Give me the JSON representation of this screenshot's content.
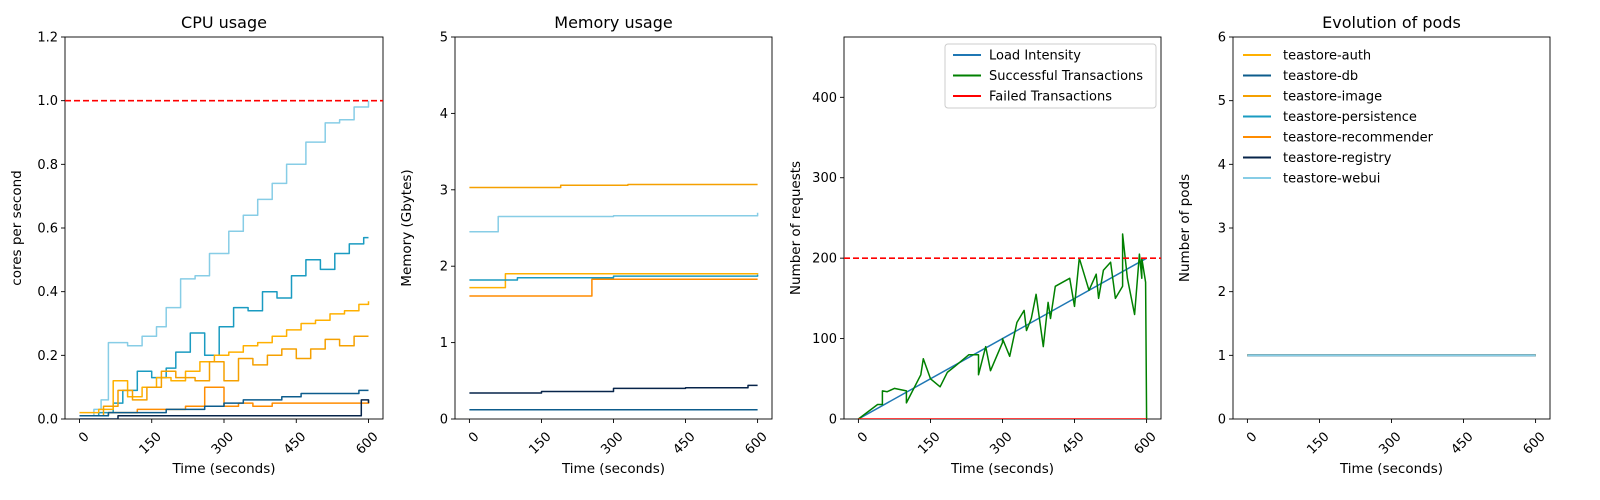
{
  "colors": {
    "teastore-auth": "#ffb000",
    "teastore-db": "#0d5c8c",
    "teastore-image": "#f5a000",
    "teastore-persistence": "#1a9bc1",
    "teastore-recommender": "#ff8c00",
    "teastore-registry": "#07244a",
    "teastore-webui": "#87cde6",
    "load": "#1f77b4",
    "success": "#008000",
    "failed": "#ff0000",
    "threshold": "#ff0000"
  },
  "chart_data": [
    {
      "type": "line",
      "title": "CPU usage",
      "xlabel": "Time (seconds)",
      "ylabel": "cores per second",
      "xlim": [
        -30,
        630
      ],
      "ylim": [
        0,
        1.2
      ],
      "xticks": [
        0,
        150,
        300,
        450,
        600
      ],
      "yticks": [
        0.0,
        0.2,
        0.4,
        0.6,
        0.8,
        1.0,
        1.2
      ],
      "ytick_labels": [
        "0.0",
        "0.2",
        "0.4",
        "0.6",
        "0.8",
        "1.0",
        "1.2"
      ],
      "hline": 1.0,
      "step": true,
      "series": [
        {
          "name": "teastore-webui",
          "x": [
            0,
            30,
            45,
            60,
            100,
            130,
            160,
            180,
            210,
            240,
            270,
            310,
            340,
            370,
            400,
            430,
            470,
            510,
            540,
            570,
            600
          ],
          "values": [
            0.01,
            0.03,
            0.06,
            0.24,
            0.23,
            0.26,
            0.29,
            0.35,
            0.44,
            0.45,
            0.52,
            0.59,
            0.64,
            0.69,
            0.74,
            0.8,
            0.87,
            0.93,
            0.94,
            0.98,
            1.0
          ]
        },
        {
          "name": "teastore-persistence",
          "x": [
            0,
            40,
            70,
            90,
            120,
            150,
            180,
            200,
            230,
            260,
            290,
            320,
            350,
            380,
            410,
            440,
            470,
            500,
            530,
            560,
            590,
            600
          ],
          "values": [
            0.01,
            0.02,
            0.05,
            0.09,
            0.15,
            0.13,
            0.16,
            0.21,
            0.27,
            0.2,
            0.29,
            0.35,
            0.34,
            0.4,
            0.38,
            0.45,
            0.5,
            0.47,
            0.52,
            0.55,
            0.57,
            0.57
          ]
        },
        {
          "name": "teastore-auth",
          "x": [
            0,
            40,
            70,
            100,
            130,
            160,
            190,
            220,
            250,
            280,
            310,
            340,
            370,
            400,
            430,
            460,
            490,
            520,
            550,
            580,
            600
          ],
          "values": [
            0.02,
            0.03,
            0.12,
            0.07,
            0.1,
            0.13,
            0.12,
            0.15,
            0.18,
            0.2,
            0.21,
            0.23,
            0.24,
            0.26,
            0.28,
            0.3,
            0.31,
            0.33,
            0.34,
            0.36,
            0.37
          ]
        },
        {
          "name": "teastore-image",
          "x": [
            0,
            50,
            80,
            110,
            140,
            170,
            200,
            240,
            270,
            300,
            330,
            360,
            390,
            420,
            450,
            480,
            510,
            540,
            570,
            600
          ],
          "values": [
            0.01,
            0.04,
            0.09,
            0.06,
            0.1,
            0.15,
            0.13,
            0.12,
            0.18,
            0.12,
            0.19,
            0.17,
            0.2,
            0.22,
            0.19,
            0.22,
            0.25,
            0.23,
            0.26,
            0.26
          ]
        },
        {
          "name": "teastore-recommender",
          "x": [
            0,
            60,
            120,
            180,
            220,
            260,
            300,
            330,
            360,
            400,
            440,
            480,
            520,
            560,
            600
          ],
          "values": [
            0.01,
            0.02,
            0.03,
            0.03,
            0.04,
            0.1,
            0.04,
            0.05,
            0.04,
            0.05,
            0.05,
            0.05,
            0.05,
            0.05,
            0.06
          ]
        },
        {
          "name": "teastore-db",
          "x": [
            0,
            60,
            120,
            180,
            220,
            260,
            300,
            340,
            380,
            420,
            460,
            500,
            540,
            580,
            600
          ],
          "values": [
            0.01,
            0.02,
            0.02,
            0.03,
            0.03,
            0.04,
            0.05,
            0.06,
            0.06,
            0.07,
            0.08,
            0.08,
            0.08,
            0.09,
            0.09
          ]
        },
        {
          "name": "teastore-registry",
          "x": [
            0,
            80,
            160,
            240,
            300,
            360,
            420,
            480,
            540,
            585,
            600
          ],
          "values": [
            0.0,
            0.01,
            0.01,
            0.01,
            0.01,
            0.01,
            0.01,
            0.01,
            0.01,
            0.06,
            0.05
          ]
        }
      ]
    },
    {
      "type": "line",
      "title": "Memory usage",
      "xlabel": "Time (seconds)",
      "ylabel": "Memory (Gbytes)",
      "xlim": [
        -30,
        630
      ],
      "ylim": [
        0,
        5
      ],
      "xticks": [
        0,
        150,
        300,
        450,
        600
      ],
      "yticks": [
        0,
        1,
        2,
        3,
        4,
        5
      ],
      "ytick_labels": [
        "0",
        "1",
        "2",
        "3",
        "4",
        "5"
      ],
      "step": true,
      "series": [
        {
          "name": "teastore-image",
          "x": [
            0,
            190,
            330,
            600
          ],
          "values": [
            3.03,
            3.06,
            3.07,
            3.07
          ]
        },
        {
          "name": "teastore-webui",
          "x": [
            0,
            60,
            300,
            600
          ],
          "values": [
            2.45,
            2.65,
            2.66,
            2.7
          ]
        },
        {
          "name": "teastore-auth",
          "x": [
            0,
            75,
            300,
            600
          ],
          "values": [
            1.72,
            1.9,
            1.9,
            1.91
          ]
        },
        {
          "name": "teastore-persistence",
          "x": [
            0,
            100,
            300,
            600
          ],
          "values": [
            1.82,
            1.85,
            1.87,
            1.89
          ]
        },
        {
          "name": "teastore-recommender",
          "x": [
            0,
            255,
            600
          ],
          "values": [
            1.61,
            1.83,
            1.83
          ]
        },
        {
          "name": "teastore-registry",
          "x": [
            0,
            150,
            300,
            450,
            580,
            600
          ],
          "values": [
            0.34,
            0.36,
            0.4,
            0.41,
            0.44,
            0.44
          ]
        },
        {
          "name": "teastore-db",
          "x": [
            0,
            600
          ],
          "values": [
            0.12,
            0.12
          ]
        }
      ]
    },
    {
      "type": "line",
      "title": "",
      "xlabel": "Time (seconds)",
      "ylabel": "Number of requests",
      "xlim": [
        -30,
        630
      ],
      "ylim": [
        0,
        475
      ],
      "xticks": [
        0,
        150,
        300,
        450,
        600
      ],
      "yticks": [
        0,
        100,
        200,
        300,
        400
      ],
      "ytick_labels": [
        "0",
        "100",
        "200",
        "300",
        "400"
      ],
      "hline": 200,
      "legend": "top-right",
      "series": [
        {
          "name": "Load Intensity",
          "x": [
            0,
            600
          ],
          "values": [
            0,
            200
          ]
        },
        {
          "name": "Successful Transactions",
          "x": [
            0,
            50,
            100,
            150,
            200,
            250,
            300,
            350,
            400,
            450,
            500,
            550,
            590,
            598,
            600
          ],
          "values": [
            0,
            18,
            35,
            50,
            65,
            80,
            95,
            110,
            125,
            140,
            150,
            165,
            175,
            170,
            0
          ],
          "spikes": [
            [
              40,
              18
            ],
            [
              50,
              35
            ],
            [
              60,
              34
            ],
            [
              75,
              38
            ],
            [
              100,
              20
            ],
            [
              130,
              55
            ],
            [
              135,
              75
            ],
            [
              170,
              40
            ],
            [
              185,
              58
            ],
            [
              210,
              70
            ],
            [
              230,
              80
            ],
            [
              250,
              55
            ],
            [
              265,
              90
            ],
            [
              275,
              60
            ],
            [
              300,
              100
            ],
            [
              315,
              78
            ],
            [
              330,
              120
            ],
            [
              345,
              135
            ],
            [
              360,
              125
            ],
            [
              370,
              155
            ],
            [
              385,
              90
            ],
            [
              395,
              145
            ],
            [
              410,
              165
            ],
            [
              425,
              170
            ],
            [
              440,
              175
            ],
            [
              460,
              200
            ],
            [
              480,
              160
            ],
            [
              495,
              180
            ],
            [
              510,
              185
            ],
            [
              525,
              195
            ],
            [
              535,
              150
            ],
            [
              550,
              230
            ],
            [
              560,
              175
            ],
            [
              575,
              130
            ],
            [
              585,
              205
            ],
            [
              590,
              200
            ]
          ]
        },
        {
          "name": "Failed Transactions",
          "x": [
            0,
            600
          ],
          "values": [
            0,
            0
          ]
        }
      ]
    },
    {
      "type": "line",
      "title": "Evolution of pods",
      "xlabel": "Time (seconds)",
      "ylabel": "Number of pods",
      "xlim": [
        -30,
        630
      ],
      "ylim": [
        0,
        6
      ],
      "xticks": [
        0,
        150,
        300,
        450,
        600
      ],
      "yticks": [
        0,
        1,
        2,
        3,
        4,
        5,
        6
      ],
      "ytick_labels": [
        "0",
        "1",
        "2",
        "3",
        "4",
        "5",
        "6"
      ],
      "legend": "top-left",
      "series": [
        {
          "name": "teastore-auth",
          "x": [
            0,
            600
          ],
          "values": [
            1,
            1
          ]
        },
        {
          "name": "teastore-db",
          "x": [
            0,
            600
          ],
          "values": [
            1,
            1
          ]
        },
        {
          "name": "teastore-image",
          "x": [
            0,
            600
          ],
          "values": [
            1,
            1
          ]
        },
        {
          "name": "teastore-persistence",
          "x": [
            0,
            600
          ],
          "values": [
            1,
            1
          ]
        },
        {
          "name": "teastore-recommender",
          "x": [
            0,
            600
          ],
          "values": [
            1,
            1
          ]
        },
        {
          "name": "teastore-registry",
          "x": [
            0,
            600
          ],
          "values": [
            1,
            1
          ]
        },
        {
          "name": "teastore-webui",
          "x": [
            0,
            600
          ],
          "values": [
            1,
            1
          ]
        }
      ]
    }
  ]
}
